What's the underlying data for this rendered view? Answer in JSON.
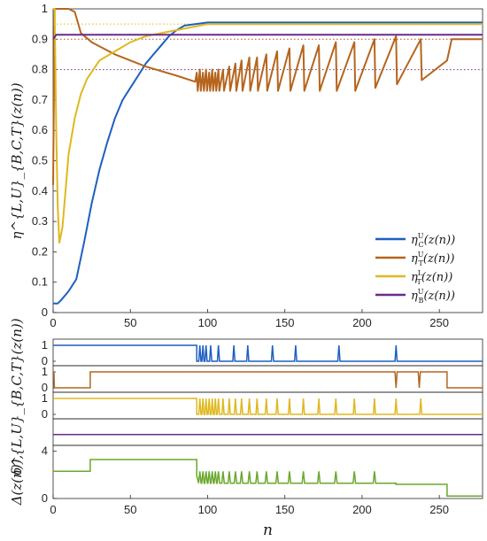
{
  "chart_data": [
    {
      "type": "line",
      "ylabel": "η^{L,U}_{B,C,T}(z(n))",
      "xlim": [
        0,
        278
      ],
      "ylim": [
        0,
        1
      ],
      "xticks": [
        0,
        50,
        100,
        150,
        200,
        250
      ],
      "yticks": [
        0,
        0.1,
        0.2,
        0.3,
        0.4,
        0.5,
        0.6,
        0.7,
        0.8,
        0.9,
        1
      ],
      "legend_position": "bottom-right",
      "reference_lines": [
        {
          "y": 0.95,
          "color": "#e6b800",
          "style": "dotted"
        },
        {
          "y": 0.9,
          "color": "#a0522d",
          "style": "dotted"
        },
        {
          "y": 0.8,
          "color": "#7b2d8e",
          "style": "dotted"
        }
      ],
      "series": [
        {
          "name": "η^U_C(z(n))",
          "legend_main": "η",
          "legend_sup": "U",
          "legend_sub": "C",
          "legend_arg": "(z(n))",
          "color": "#1f5fbf",
          "x": [
            0,
            3,
            5,
            10,
            15,
            20,
            25,
            30,
            35,
            40,
            45,
            50,
            55,
            60,
            65,
            70,
            75,
            80,
            85,
            92,
            100,
            120,
            278
          ],
          "y": [
            0.03,
            0.03,
            0.04,
            0.07,
            0.11,
            0.23,
            0.36,
            0.47,
            0.56,
            0.64,
            0.7,
            0.74,
            0.78,
            0.82,
            0.85,
            0.88,
            0.91,
            0.93,
            0.945,
            0.95,
            0.955,
            0.955,
            0.955
          ]
        },
        {
          "name": "η^U_T(z(n))",
          "legend_main": "η",
          "legend_sup": "U",
          "legend_sub": "T",
          "legend_arg": "(z(n))",
          "color": "#b5651d",
          "sawtooth_peaks": [
            [
              93,
              0.79
            ],
            [
              95,
              0.8
            ],
            [
              97,
              0.79
            ],
            [
              99,
              0.8
            ],
            [
              101,
              0.79
            ],
            [
              103,
              0.8
            ],
            [
              105,
              0.79
            ],
            [
              107,
              0.8
            ],
            [
              110,
              0.8
            ],
            [
              114,
              0.81
            ],
            [
              118,
              0.82
            ],
            [
              122,
              0.83
            ],
            [
              127,
              0.84
            ],
            [
              132,
              0.84
            ],
            [
              138,
              0.85
            ],
            [
              145,
              0.86
            ],
            [
              153,
              0.87
            ],
            [
              162,
              0.88
            ],
            [
              172,
              0.88
            ],
            [
              183,
              0.89
            ],
            [
              195,
              0.89
            ],
            [
              208,
              0.9
            ],
            [
              222,
              0.91
            ],
            [
              238,
              0.9
            ]
          ],
          "x": [
            0,
            1,
            2,
            10,
            14,
            18,
            25,
            40,
            60,
            80,
            92,
            255,
            278
          ],
          "y": [
            0.42,
            1.0,
            1.0,
            1.0,
            0.99,
            0.92,
            0.89,
            0.85,
            0.81,
            0.78,
            0.76,
            0.9,
            0.9
          ]
        },
        {
          "name": "η^L_T(z(n))",
          "legend_main": "η",
          "legend_sup": "L",
          "legend_sub": "T",
          "legend_arg": "(z(n))",
          "color": "#e0b81f",
          "x": [
            0,
            1,
            2,
            3,
            4,
            6,
            8,
            10,
            14,
            18,
            22,
            30,
            40,
            50,
            60,
            70,
            80,
            90,
            100,
            120,
            150,
            200,
            250,
            278
          ],
          "y": [
            1.0,
            1.0,
            0.6,
            0.35,
            0.23,
            0.28,
            0.4,
            0.52,
            0.64,
            0.72,
            0.77,
            0.83,
            0.86,
            0.89,
            0.91,
            0.92,
            0.93,
            0.94,
            0.95,
            0.95,
            0.95,
            0.95,
            0.95,
            0.95
          ]
        },
        {
          "name": "η^U_B(z(n))",
          "legend_main": "η",
          "legend_sup": "U",
          "legend_sub": "B",
          "legend_arg": "(z(n))",
          "color": "#6a2a8a",
          "x": [
            0,
            2,
            4,
            278
          ],
          "y": [
            0.9,
            0.915,
            0.915,
            0.915
          ]
        }
      ]
    },
    {
      "type": "line",
      "ylabel": "δ^{L,U}_{B,C,T}(z(n))",
      "xlim": [
        0,
        278
      ],
      "panels": [
        {
          "color": "#1f5fbf",
          "yticks": [
            0,
            1
          ],
          "base": 1,
          "drop_at": 93,
          "low_base": 0,
          "spikes": [
            95,
            97,
            99,
            102,
            107,
            117,
            126,
            142,
            157,
            185,
            222
          ]
        },
        {
          "color": "#b5651d",
          "yticks": [
            0,
            1
          ],
          "base": 0,
          "rise_at": 24,
          "high_base": 1,
          "dips": [
            222,
            237
          ],
          "fall_at": 255
        },
        {
          "color": "#e0b81f",
          "yticks": [
            0,
            1
          ],
          "base": 1,
          "drop_at": 93,
          "low_base": 0,
          "spikes": [
            95,
            97,
            99,
            101,
            103,
            105,
            107,
            110,
            114,
            118,
            122,
            127,
            132,
            138,
            145,
            153,
            162,
            172,
            183,
            195,
            208,
            222,
            238
          ]
        },
        {
          "color": "#6a2a8a",
          "yticks": [],
          "base": 0
        }
      ]
    },
    {
      "type": "line",
      "ylabel": "Δ(z(n)),",
      "xlabel": "n",
      "xlim": [
        0,
        278
      ],
      "ylim": [
        0,
        4.5
      ],
      "yticks": [
        0,
        4
      ],
      "xticks": [
        0,
        50,
        100,
        150,
        200,
        250
      ],
      "color": "#6aa82d",
      "segments": {
        "start": 2.3,
        "rise_at": 24,
        "high": 3.3,
        "drop_at": 93,
        "saw_base": 1.3,
        "saw_peak": 2.3,
        "plateau_at": 222,
        "plateau": 1.2,
        "end_at": 255,
        "end": 0.2
      },
      "spikes": [
        95,
        97,
        99,
        101,
        103,
        105,
        107,
        110,
        114,
        118,
        122,
        127,
        132,
        138,
        145,
        153,
        162,
        172,
        183,
        195,
        208
      ]
    }
  ]
}
